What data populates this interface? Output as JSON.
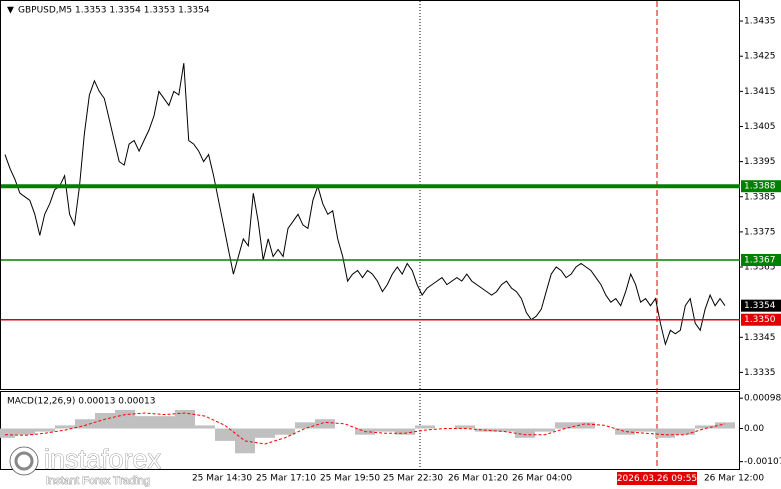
{
  "chart_data": {
    "type": "line",
    "title": "GBPUSD,M5  1.3353 1.3354 1.3353 1.3354",
    "color": "#000000",
    "values": [
      1.3397,
      1.3393,
      1.339,
      1.3386,
      1.3385,
      1.3384,
      1.338,
      1.3374,
      1.338,
      1.3383,
      1.3387,
      1.3388,
      1.3391,
      1.338,
      1.3377,
      1.3388,
      1.3403,
      1.3414,
      1.3418,
      1.3415,
      1.3413,
      1.3407,
      1.3401,
      1.3395,
      1.3394,
      1.34,
      1.3401,
      1.3398,
      1.3401,
      1.3404,
      1.3408,
      1.3415,
      1.3413,
      1.3411,
      1.3415,
      1.3414,
      1.3423,
      1.3401,
      1.34,
      1.3398,
      1.3395,
      1.3397,
      1.3391,
      1.3384,
      1.3377,
      1.337,
      1.3363,
      1.3368,
      1.3373,
      1.3371,
      1.3386,
      1.3378,
      1.3367,
      1.3373,
      1.3368,
      1.337,
      1.3368,
      1.3376,
      1.3378,
      1.338,
      1.3377,
      1.3376,
      1.3384,
      1.3388,
      1.3383,
      1.338,
      1.3381,
      1.3373,
      1.3368,
      1.3361,
      1.3363,
      1.3364,
      1.3362,
      1.3364,
      1.3363,
      1.3361,
      1.3358,
      1.336,
      1.3363,
      1.3365,
      1.3363,
      1.3366,
      1.3364,
      1.336,
      1.3357,
      1.3359,
      1.336,
      1.3361,
      1.3362,
      1.336,
      1.3361,
      1.3362,
      1.3361,
      1.3363,
      1.3361,
      1.336,
      1.3359,
      1.3358,
      1.3357,
      1.3358,
      1.336,
      1.3361,
      1.3359,
      1.3358,
      1.3356,
      1.3352,
      1.335,
      1.3351,
      1.3353,
      1.3358,
      1.3363,
      1.3365,
      1.3364,
      1.3362,
      1.3363,
      1.3365,
      1.3366,
      1.3365,
      1.3364,
      1.3362,
      1.336,
      1.3357,
      1.3355,
      1.3356,
      1.3354,
      1.3358,
      1.3363,
      1.336,
      1.3355,
      1.3356,
      1.3354,
      1.3356,
      1.3349,
      1.3343,
      1.3347,
      1.3346,
      1.3347,
      1.3354,
      1.3356,
      1.3349,
      1.3347,
      1.3353,
      1.3357,
      1.3354,
      1.3356,
      1.3354
    ],
    "ylim": [
      1.333,
      1.3441
    ],
    "yticks": [
      1.3335,
      1.3345,
      1.3365,
      1.3375,
      1.3385,
      1.3395,
      1.3405,
      1.3415,
      1.3425,
      1.3435
    ],
    "levels": [
      {
        "value": 1.3388,
        "label": "1.3388",
        "color": "#008000"
      },
      {
        "value": 1.3367,
        "label": "1.3367",
        "color": "#008000"
      },
      {
        "value": 1.335,
        "label": "1.3350",
        "color": "#e00000"
      }
    ],
    "current_price": 1.3354,
    "xticks": [
      "25 Mar 14:30",
      "25 Mar 17:10",
      "25 Mar 19:50",
      "25 Mar 22:30",
      "26 Mar 01:20",
      "26 Mar 04:00",
      "26 Mar 12:00"
    ],
    "marker_time": "2026.03.26 09:55",
    "macd": {
      "title": "MACD(12,26,9) 0.00013 0.00013",
      "histogram": [
        -0.0003,
        -0.0002,
        -0.0001,
        0.0001,
        0.0003,
        0.0005,
        0.0006,
        0.0004,
        0.0004,
        0.0006,
        0.0001,
        -0.0004,
        -0.0008,
        -0.0003,
        -0.0002,
        0.0002,
        0.0003,
        0,
        -0.0002,
        -0.0001,
        -0.0002,
        0.0001,
        0,
        0.0001,
        -0.0001,
        -0.0001,
        -0.0003,
        -0.0001,
        0.0002,
        0.0002,
        0,
        -0.0002,
        -0.0001,
        -0.0003,
        -0.0002,
        0.0001,
        0.0002
      ],
      "signal": [
        -0.0002,
        -0.00022,
        -0.00015,
        -5e-05,
        0.0001,
        0.0003,
        0.00045,
        0.0005,
        0.00045,
        0.0005,
        0.0004,
        0.0001,
        -0.0004,
        -0.0005,
        -0.0003,
        0,
        0.0002,
        0.00015,
        -0.0001,
        -0.00015,
        -0.00015,
        -5e-05,
        0,
        0,
        -5e-05,
        -0.0001,
        -0.0002,
        -0.0002,
        0,
        0.00015,
        0.0001,
        -0.0001,
        -0.00015,
        -0.0002,
        -0.0002,
        0,
        0.00015
      ],
      "histogram_color": "#c0c0c0",
      "signal_color": "#ff0000",
      "ylim": [
        -0.00134,
        0.00118
      ],
      "yticks": [
        0.00098,
        {
          "value": 0,
          "label": "0.00"
        },
        -0.00107
      ]
    },
    "watermark": {
      "brand": "instaforex",
      "tagline": "Instant Forex Trading"
    }
  }
}
